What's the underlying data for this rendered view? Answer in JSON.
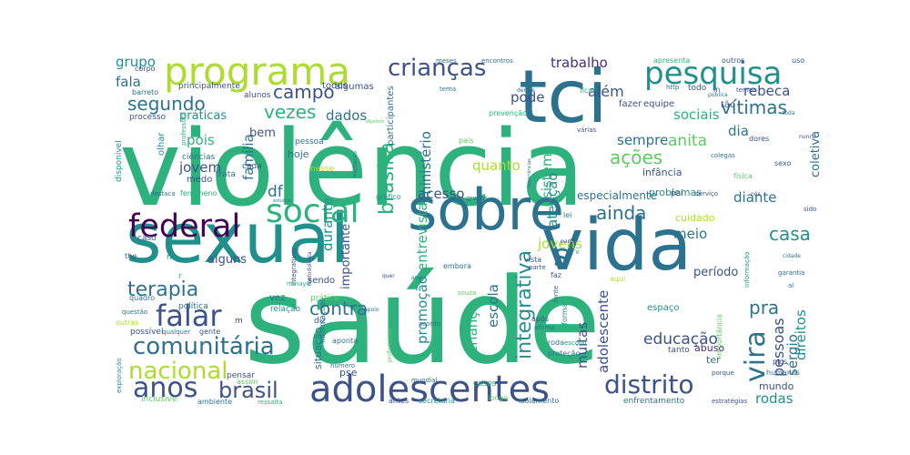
{
  "title": "",
  "palette": {
    "teal_green": "#2db27d",
    "teal": "#21908d",
    "blue_teal": "#2c728e",
    "blue": "#3b528b",
    "indigo": "#472d7b",
    "deep_purple": "#440154",
    "green": "#5ec962",
    "lime": "#addc30",
    "yellow": "#fde725"
  },
  "words": [
    {
      "text": "saúde",
      "color": "#2db27d"
    },
    {
      "text": "violência",
      "color": "#2db27d"
    },
    {
      "text": "sexual",
      "color": "#21908d"
    },
    {
      "text": "vida",
      "color": "#2c728e"
    },
    {
      "text": "tci",
      "color": "#2c728e"
    },
    {
      "text": "sobre",
      "color": "#2c728e"
    },
    {
      "text": "programa",
      "color": "#addc30"
    },
    {
      "text": "adolescentes",
      "color": "#3b528b"
    },
    {
      "text": "pesquisa",
      "color": "#21908d"
    },
    {
      "text": "crianças",
      "color": "#3b528b"
    },
    {
      "text": "federal",
      "color": "#440154"
    },
    {
      "text": "social",
      "color": "#2db27d"
    },
    {
      "text": "distrito",
      "color": "#3b528b"
    },
    {
      "text": "anos",
      "color": "#3b528b"
    },
    {
      "text": "falar",
      "color": "#3b528b"
    },
    {
      "text": "comunitária",
      "color": "#2c728e"
    },
    {
      "text": "nacional",
      "color": "#addc30"
    },
    {
      "text": "brasil",
      "color": "#3b528b"
    },
    {
      "text": "vira",
      "color": "#2c728e"
    },
    {
      "text": "s",
      "color": "#2c728e"
    },
    {
      "text": "vítimas",
      "color": "#2c728e"
    },
    {
      "text": "segundo",
      "color": "#2c728e"
    },
    {
      "text": "terapia",
      "color": "#2c728e"
    },
    {
      "text": "campo",
      "color": "#3b528b"
    },
    {
      "text": "vezes",
      "color": "#2db27d"
    },
    {
      "text": "brasília",
      "color": "#2db27d"
    },
    {
      "text": "integrativa",
      "color": "#21908d"
    },
    {
      "text": "contra",
      "color": "#2c728e"
    },
    {
      "text": "ainda",
      "color": "#2c728e"
    },
    {
      "text": "casa",
      "color": "#21908d"
    },
    {
      "text": "pessoas",
      "color": "#3b528b"
    },
    {
      "text": "pra",
      "color": "#2c728e"
    },
    {
      "text": "ações",
      "color": "#5ec962"
    },
    {
      "text": "trabalho",
      "color": "#472d7b"
    },
    {
      "text": "além",
      "color": "#3b528b"
    },
    {
      "text": "rebeca",
      "color": "#3b528b"
    },
    {
      "text": "sociais",
      "color": "#2db27d"
    },
    {
      "text": "dia",
      "color": "#2c728e"
    },
    {
      "text": "grupo",
      "color": "#21908d"
    },
    {
      "text": "fala",
      "color": "#2c728e"
    },
    {
      "text": "pode",
      "color": "#3b528b"
    },
    {
      "text": "dados",
      "color": "#2c728e"
    },
    {
      "text": "sempre",
      "color": "#2c728e"
    },
    {
      "text": "anita",
      "color": "#5ec962"
    },
    {
      "text": "acesso",
      "color": "#3b528b"
    },
    {
      "text": "diante",
      "color": "#2c728e"
    },
    {
      "text": "meio",
      "color": "#2c728e"
    },
    {
      "text": "jovens",
      "color": "#addc30"
    },
    {
      "text": "escola",
      "color": "#2c728e"
    },
    {
      "text": "educação",
      "color": "#3b528b"
    },
    {
      "text": "muitas",
      "color": "#3b528b"
    },
    {
      "text": "direitos",
      "color": "#21908d"
    },
    {
      "text": "rodas",
      "color": "#21908d"
    },
    {
      "text": "sérgio",
      "color": "#2c728e"
    },
    {
      "text": "período",
      "color": "#3b528b"
    },
    {
      "text": "família",
      "color": "#2c728e"
    },
    {
      "text": "jovem",
      "color": "#3b528b"
    },
    {
      "text": "df",
      "color": "#2c728e"
    },
    {
      "text": "pois",
      "color": "#2db27d"
    },
    {
      "text": "quanto",
      "color": "#addc30"
    },
    {
      "text": "entrevista",
      "color": "#2db27d"
    },
    {
      "text": "promoção",
      "color": "#21908d"
    },
    {
      "text": "criança",
      "color": "#2db27d"
    },
    {
      "text": "durante",
      "color": "#21908d"
    },
    {
      "text": "ministério",
      "color": "#2c728e"
    },
    {
      "text": "sistema",
      "color": "#2db27d"
    },
    {
      "text": "atenção",
      "color": "#21908d"
    },
    {
      "text": "adolescente",
      "color": "#3b528b"
    },
    {
      "text": "coletiva",
      "color": "#2c728e"
    },
    {
      "text": "importante",
      "color": "#3b528b"
    },
    {
      "text": "alguns",
      "color": "#3b528b"
    },
    {
      "text": "hoje",
      "color": "#2c728e"
    },
    {
      "text": "práticas",
      "color": "#21908d"
    },
    {
      "text": "bem",
      "color": "#3b528b"
    },
    {
      "text": "especialmente",
      "color": "#2c728e"
    },
    {
      "text": "infância",
      "color": "#3b528b"
    },
    {
      "text": "problemas",
      "color": "#21908d"
    },
    {
      "text": "cuidado",
      "color": "#addc30"
    },
    {
      "text": "abuso",
      "color": "#472d7b"
    },
    {
      "text": "mundo",
      "color": "#3b528b"
    },
    {
      "text": "ter",
      "color": "#2c728e"
    },
    {
      "text": "pse",
      "color": "#3b528b"
    },
    {
      "text": "situação",
      "color": "#2c728e"
    },
    {
      "text": "espaço",
      "color": "#21908d"
    },
    {
      "text": "tanto",
      "color": "#3b528b"
    },
    {
      "text": "equipe",
      "color": "#3b528b"
    },
    {
      "text": "fazer",
      "color": "#3b528b"
    },
    {
      "text": "participantes",
      "color": "#2c728e"
    },
    {
      "text": "algumas",
      "color": "#3b528b"
    },
    {
      "text": "todos",
      "color": "#3b528b"
    },
    {
      "text": "alunos",
      "color": "#3b528b"
    },
    {
      "text": "principalmente",
      "color": "#3b528b"
    },
    {
      "text": "processo",
      "color": "#3b528b"
    },
    {
      "text": "corpo",
      "color": "#3b528b"
    },
    {
      "text": "barreto",
      "color": "#2c728e"
    },
    {
      "text": "olhar",
      "color": "#21908d"
    },
    {
      "text": "ciências",
      "color": "#2c728e"
    },
    {
      "text": "medo",
      "color": "#3b528b"
    },
    {
      "text": "trata",
      "color": "#2c728e"
    },
    {
      "text": "disponível",
      "color": "#21908d"
    },
    {
      "text": "professora",
      "color": "#2db27d"
    },
    {
      "text": "cada",
      "color": "#3b528b"
    },
    {
      "text": "pessoa",
      "color": "#2c728e"
    },
    {
      "text": "nesse",
      "color": "#addc30"
    },
    {
      "text": "fenômeno",
      "color": "#2db27d"
    },
    {
      "text": "gráfico",
      "color": "#21908d"
    },
    {
      "text": "destaca",
      "color": "#2c728e"
    },
    {
      "text": "caso",
      "color": "#3b528b"
    },
    {
      "text": "the",
      "color": "#3b528b"
    },
    {
      "text": "n",
      "color": "#21908d"
    },
    {
      "text": "quadro",
      "color": "#2c728e"
    },
    {
      "text": "política",
      "color": "#2c728e"
    },
    {
      "text": "questão",
      "color": "#2c728e"
    },
    {
      "text": "outras",
      "color": "#addc30"
    },
    {
      "text": "possível",
      "color": "#3b528b"
    },
    {
      "text": "gente",
      "color": "#3b528b"
    },
    {
      "text": "exploração",
      "color": "#21908d"
    },
    {
      "text": "inclusive",
      "color": "#5ec962"
    },
    {
      "text": "ambiente",
      "color": "#2c728e"
    },
    {
      "text": "ressalta",
      "color": "#2db27d"
    },
    {
      "text": "assim",
      "color": "#5ec962"
    },
    {
      "text": "pensar",
      "color": "#3b528b"
    },
    {
      "text": "diz",
      "color": "#3b528b"
    },
    {
      "text": "relação",
      "color": "#21908d"
    },
    {
      "text": "vez",
      "color": "#2c728e"
    },
    {
      "text": "prática",
      "color": "#5ec962"
    },
    {
      "text": "sendo",
      "color": "#3b528b"
    },
    {
      "text": "informações",
      "color": "#2c728e"
    },
    {
      "text": "número",
      "color": "#2c728e"
    },
    {
      "text": "aponta",
      "color": "#2c728e"
    },
    {
      "text": "profissionais",
      "color": "#5ec962"
    },
    {
      "text": "antes",
      "color": "#3b528b"
    },
    {
      "text": "secretaria",
      "color": "#21908d"
    },
    {
      "text": "longo",
      "color": "#5ec962"
    },
    {
      "text": "isolamento",
      "color": "#2c728e"
    },
    {
      "text": "enfrentamento",
      "color": "#2c728e"
    },
    {
      "text": "estratégias",
      "color": "#3b528b"
    },
    {
      "text": "humanos",
      "color": "#2c728e"
    },
    {
      "text": "pics",
      "color": "#3b528b"
    },
    {
      "text": "garantia",
      "color": "#2c728e"
    },
    {
      "text": "importância",
      "color": "#5ec962"
    },
    {
      "text": "informação",
      "color": "#21908d"
    },
    {
      "text": "serviço",
      "color": "#3b528b"
    },
    {
      "text": "física",
      "color": "#5ec962"
    },
    {
      "text": "sexo",
      "color": "#3b528b"
    },
    {
      "text": "colegas",
      "color": "#2c728e"
    },
    {
      "text": "dores",
      "color": "#3b528b"
    },
    {
      "text": "tempo",
      "color": "#3b528b"
    },
    {
      "text": "pública",
      "color": "#2c728e"
    },
    {
      "text": "todo",
      "color": "#3b528b"
    },
    {
      "text": "http",
      "color": "#2c728e"
    },
    {
      "text": "ficar",
      "color": "#2db27d"
    },
    {
      "text": "dentre",
      "color": "#2c728e"
    },
    {
      "text": "tema",
      "color": "#2c728e"
    },
    {
      "text": "prevenção",
      "color": "#2db27d"
    },
    {
      "text": "várias",
      "color": "#3b528b"
    },
    {
      "text": "meses",
      "color": "#2c728e"
    },
    {
      "text": "encontros",
      "color": "#2c728e"
    },
    {
      "text": "apresenta",
      "color": "#2db27d"
    },
    {
      "text": "outros",
      "color": "#3b528b"
    },
    {
      "text": "uso",
      "color": "#3b528b"
    },
    {
      "text": "vista",
      "color": "#3b528b"
    },
    {
      "text": "parte",
      "color": "#3b528b"
    },
    {
      "text": "faz",
      "color": "#3b528b"
    },
    {
      "text": "aqui",
      "color": "#addc30"
    },
    {
      "text": "após",
      "color": "#3b528b"
    },
    {
      "text": "afirma",
      "color": "#2c728e"
    },
    {
      "text": "roda",
      "color": "#2c728e"
    },
    {
      "text": "escolar",
      "color": "#21908d"
    },
    {
      "text": "proteção",
      "color": "#2c728e"
    },
    {
      "text": "casos",
      "color": "#2db27d"
    },
    {
      "text": "mundial",
      "color": "#2c728e"
    },
    {
      "text": "souza",
      "color": "#5ec962"
    },
    {
      "text": "lei",
      "color": "#2c728e"
    },
    {
      "text": "acordo",
      "color": "#2c728e"
    },
    {
      "text": "embora",
      "color": "#2c728e"
    },
    {
      "text": "fonte",
      "color": "#2c728e"
    },
    {
      "text": "porque",
      "color": "#3b528b"
    },
    {
      "text": "forma",
      "color": "#21908d"
    },
    {
      "text": "experiências",
      "color": "#2c728e"
    },
    {
      "text": "tão",
      "color": "#3b528b"
    },
    {
      "text": "pai",
      "color": "#3b528b"
    },
    {
      "text": "grupos",
      "color": "#2c728e"
    },
    {
      "text": "integrativas",
      "color": "#3b528b"
    },
    {
      "text": "metodologia",
      "color": "#3b528b"
    },
    {
      "text": "minayo",
      "color": "#2db27d"
    },
    {
      "text": "qualquer",
      "color": "#2c728e"
    },
    {
      "text": "momento",
      "color": "#2c728e"
    },
    {
      "text": "ver",
      "color": "#2c728e"
    },
    {
      "text": "quer",
      "color": "#3b528b"
    },
    {
      "text": "m",
      "color": "#3b528b"
    },
    {
      "text": "r",
      "color": "#2db27d"
    },
    {
      "text": "partir",
      "color": "#3b528b"
    },
    {
      "text": "in",
      "color": "#3b528b"
    },
    {
      "text": "nós",
      "color": "#3b528b"
    },
    {
      "text": "al",
      "color": "#2c728e"
    },
    {
      "text": "v",
      "color": "#2db27d"
    },
    {
      "text": "objetivo",
      "color": "#5ec962"
    },
    {
      "text": "estudos",
      "color": "#2c728e"
    },
    {
      "text": "pais",
      "color": "#5ec962"
    },
    {
      "text": "cidade",
      "color": "#2c728e"
    },
    {
      "text": "ano",
      "color": "#2c728e"
    },
    {
      "text": "sido",
      "color": "#3b528b"
    },
    {
      "text": "apoio",
      "color": "#2c728e"
    },
    {
      "text": "toda",
      "color": "#2c728e"
    },
    {
      "text": "nunca",
      "color": "#3b528b"
    }
  ]
}
